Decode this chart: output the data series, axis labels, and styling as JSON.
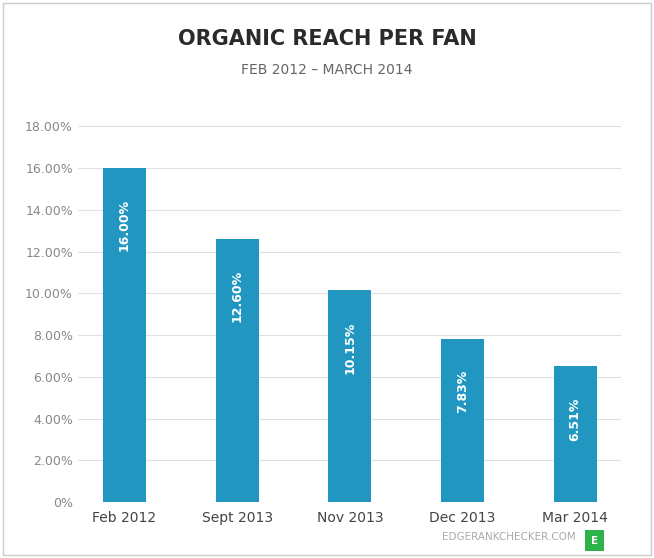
{
  "title": "ORGANIC REACH PER FAN",
  "subtitle": "FEB 2012 – MARCH 2014",
  "categories": [
    "Feb 2012",
    "Sept 2013",
    "Nov 2013",
    "Dec 2013",
    "Mar 2014"
  ],
  "values": [
    16.0,
    12.6,
    10.15,
    7.83,
    6.51
  ],
  "bar_color": "#2196c0",
  "label_color": "#ffffff",
  "background_color": "#ffffff",
  "yticks": [
    0,
    2.0,
    4.0,
    6.0,
    8.0,
    10.0,
    12.0,
    14.0,
    16.0,
    18.0
  ],
  "ytick_labels": [
    "0%",
    "2.00%",
    "4.00%",
    "6.00%",
    "8.00%",
    "10.00%",
    "12.00%",
    "14.00%",
    "16.00%",
    "18.00%"
  ],
  "ylim": [
    0,
    19.5
  ],
  "title_fontsize": 15,
  "subtitle_fontsize": 10,
  "tick_fontsize": 9,
  "bar_label_fontsize": 9,
  "xtick_fontsize": 10,
  "watermark": "EDGERANKCHECKER.COM",
  "watermark_color": "#aaaaaa",
  "grid_color": "#e0e0e0",
  "tick_color": "#888888",
  "title_color": "#2a2a2a",
  "subtitle_color": "#666666",
  "xlabel_color": "#444444",
  "border_color": "#cccccc"
}
